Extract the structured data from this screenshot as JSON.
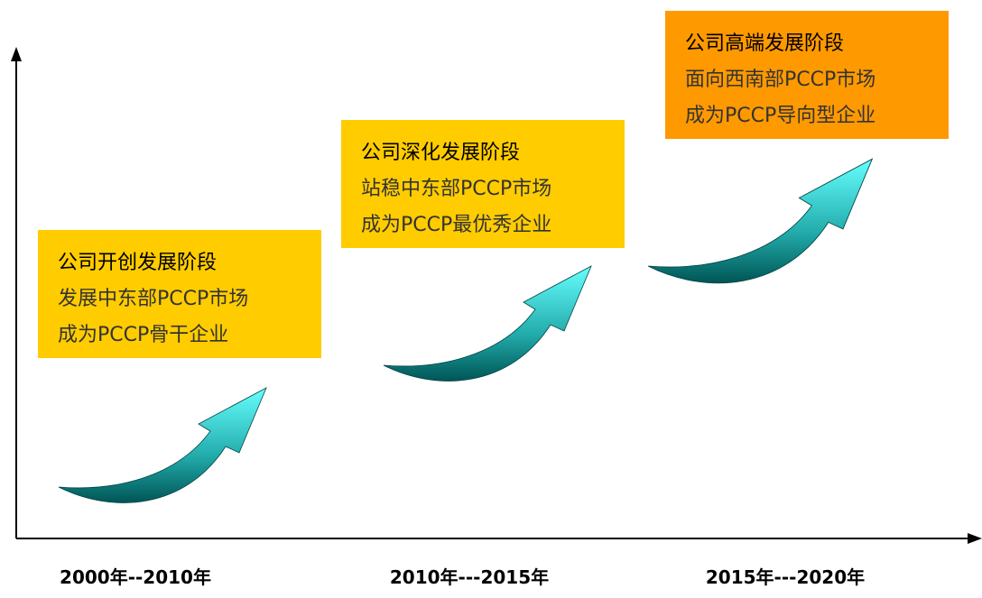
{
  "stages": [
    {
      "title": "公司开创发展阶段",
      "lines": [
        "发展中东部PCCP市场",
        "成为PCCP骨干企业"
      ],
      "period": "2000年--2010年"
    },
    {
      "title": "公司深化发展阶段",
      "lines": [
        "站稳中东部PCCP市场",
        "成为PCCP最优秀企业"
      ],
      "period": "2010年---2015年"
    },
    {
      "title": "公司高端发展阶段",
      "lines": [
        "面向西南部PCCP市场",
        "成为PCCP导向型企业"
      ],
      "period": "2015年---2020年"
    }
  ]
}
